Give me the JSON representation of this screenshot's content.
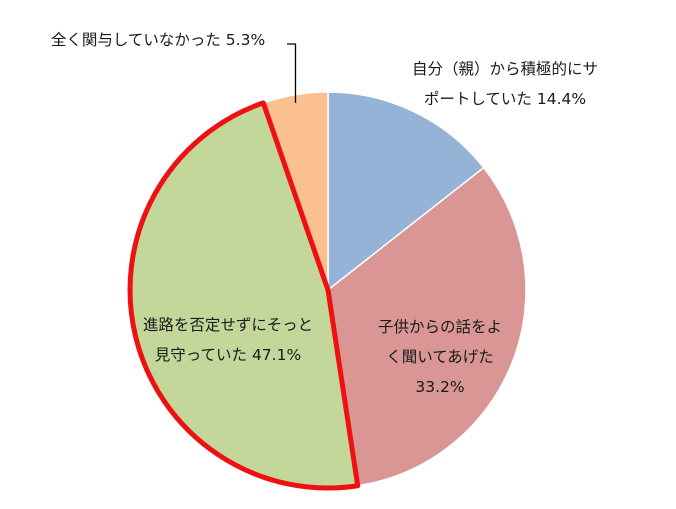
{
  "chart_data": {
    "type": "pie",
    "title": "",
    "slices": [
      {
        "label_lines": [
          "自分（親）から積極的にサ",
          "ポートしていた 14.4%"
        ],
        "value": 14.4,
        "color": "#95b3d7",
        "highlight": false
      },
      {
        "label_lines": [
          "子供からの話をよ",
          "く聞いてあげた",
          "33.2%"
        ],
        "value": 33.2,
        "color": "#d99694",
        "highlight": false
      },
      {
        "label_lines": [
          "進路を否定せずにそっと",
          "見守っていた 47.1%"
        ],
        "value": 47.1,
        "color": "#c4d79b",
        "highlight": true
      },
      {
        "label_lines": [
          "全く関与していなかった 5.3%"
        ],
        "value": 5.3,
        "color": "#fac090",
        "highlight": false
      }
    ],
    "highlight_color": "#ee1111"
  }
}
